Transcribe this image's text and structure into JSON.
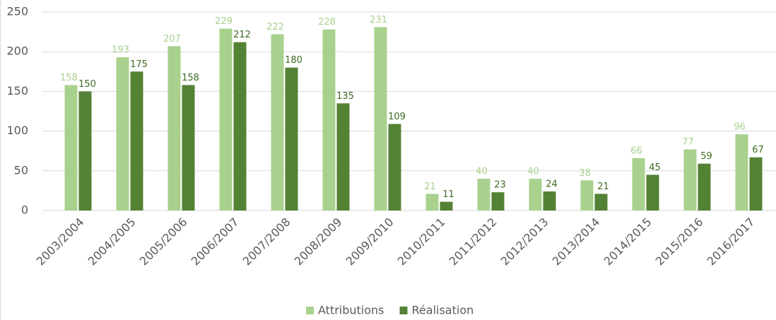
{
  "chart_data": {
    "type": "bar",
    "categories": [
      "2003/2004",
      "2004/2005",
      "2005/2006",
      "2006/2007",
      "2007/2008",
      "2008/2009",
      "2009/2010",
      "2010/2011",
      "2011/2012",
      "2012/2013",
      "2013/2014",
      "2014/2015",
      "2015/2016",
      "2016/2017"
    ],
    "series": [
      {
        "name": "Attributions",
        "color": "#a9d18e",
        "label_color": "#a9d18e",
        "values": [
          158,
          193,
          207,
          229,
          222,
          228,
          231,
          21,
          40,
          40,
          38,
          66,
          77,
          96
        ]
      },
      {
        "name": "Réalisation",
        "color": "#548235",
        "label_color": "#3e6a22",
        "values": [
          150,
          175,
          158,
          212,
          180,
          135,
          109,
          11,
          23,
          24,
          21,
          45,
          59,
          67
        ]
      }
    ],
    "ylim": [
      0,
      250
    ],
    "yticks": [
      0,
      50,
      100,
      150,
      200,
      250
    ],
    "grid": true,
    "legend": "bottom"
  }
}
